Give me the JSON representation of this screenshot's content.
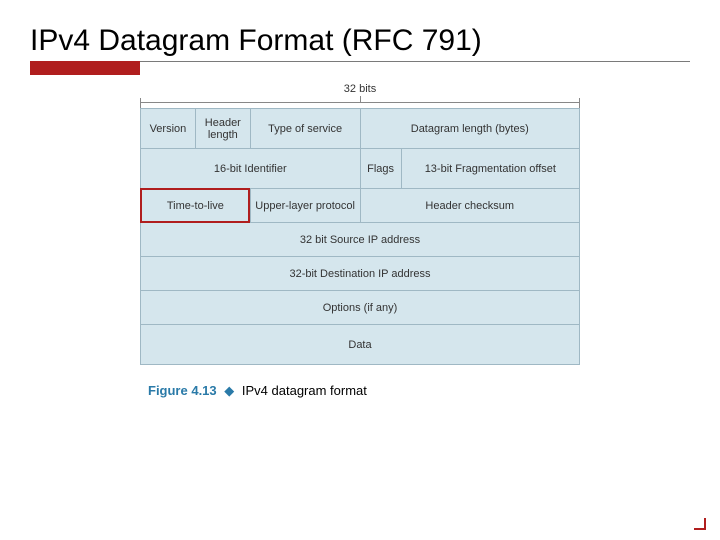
{
  "title": "IPv4 Datagram Format (RFC 791)",
  "colors": {
    "accent_red": "#b01e1e",
    "rule_color": "#7a7a7a",
    "cell_bg": "#d5e6ed",
    "cell_border": "#9fb8c4",
    "caption_accent": "#2a7aa8"
  },
  "diagram": {
    "type": "table",
    "bits_label": "32 bits",
    "total_bits": 32,
    "col_bits": [
      4,
      4,
      8,
      3,
      13
    ],
    "rows": [
      [
        {
          "span": 1,
          "label": "Version"
        },
        {
          "span": 1,
          "label": "Header length"
        },
        {
          "span": 1,
          "label": "Type of service"
        },
        {
          "span": 2,
          "label": "Datagram length (bytes)"
        }
      ],
      [
        {
          "span": 3,
          "label": "16-bit Identifier"
        },
        {
          "span": 1,
          "label": "Flags"
        },
        {
          "span": 1,
          "label": "13-bit Fragmentation offset"
        }
      ],
      [
        {
          "span": 2,
          "label": "Time-to-live",
          "highlight": true
        },
        {
          "span": 1,
          "label": "Upper-layer protocol"
        },
        {
          "span": 2,
          "label": "Header checksum"
        }
      ],
      [
        {
          "span": 5,
          "label": "32 bit Source IP address"
        }
      ],
      [
        {
          "span": 5,
          "label": "32-bit Destination IP address"
        }
      ],
      [
        {
          "span": 5,
          "label": "Options (if any)"
        }
      ],
      [
        {
          "span": 5,
          "label": "Data"
        }
      ]
    ]
  },
  "caption": {
    "figure_label": "Figure 4.13",
    "text": "IPv4 datagram format"
  }
}
